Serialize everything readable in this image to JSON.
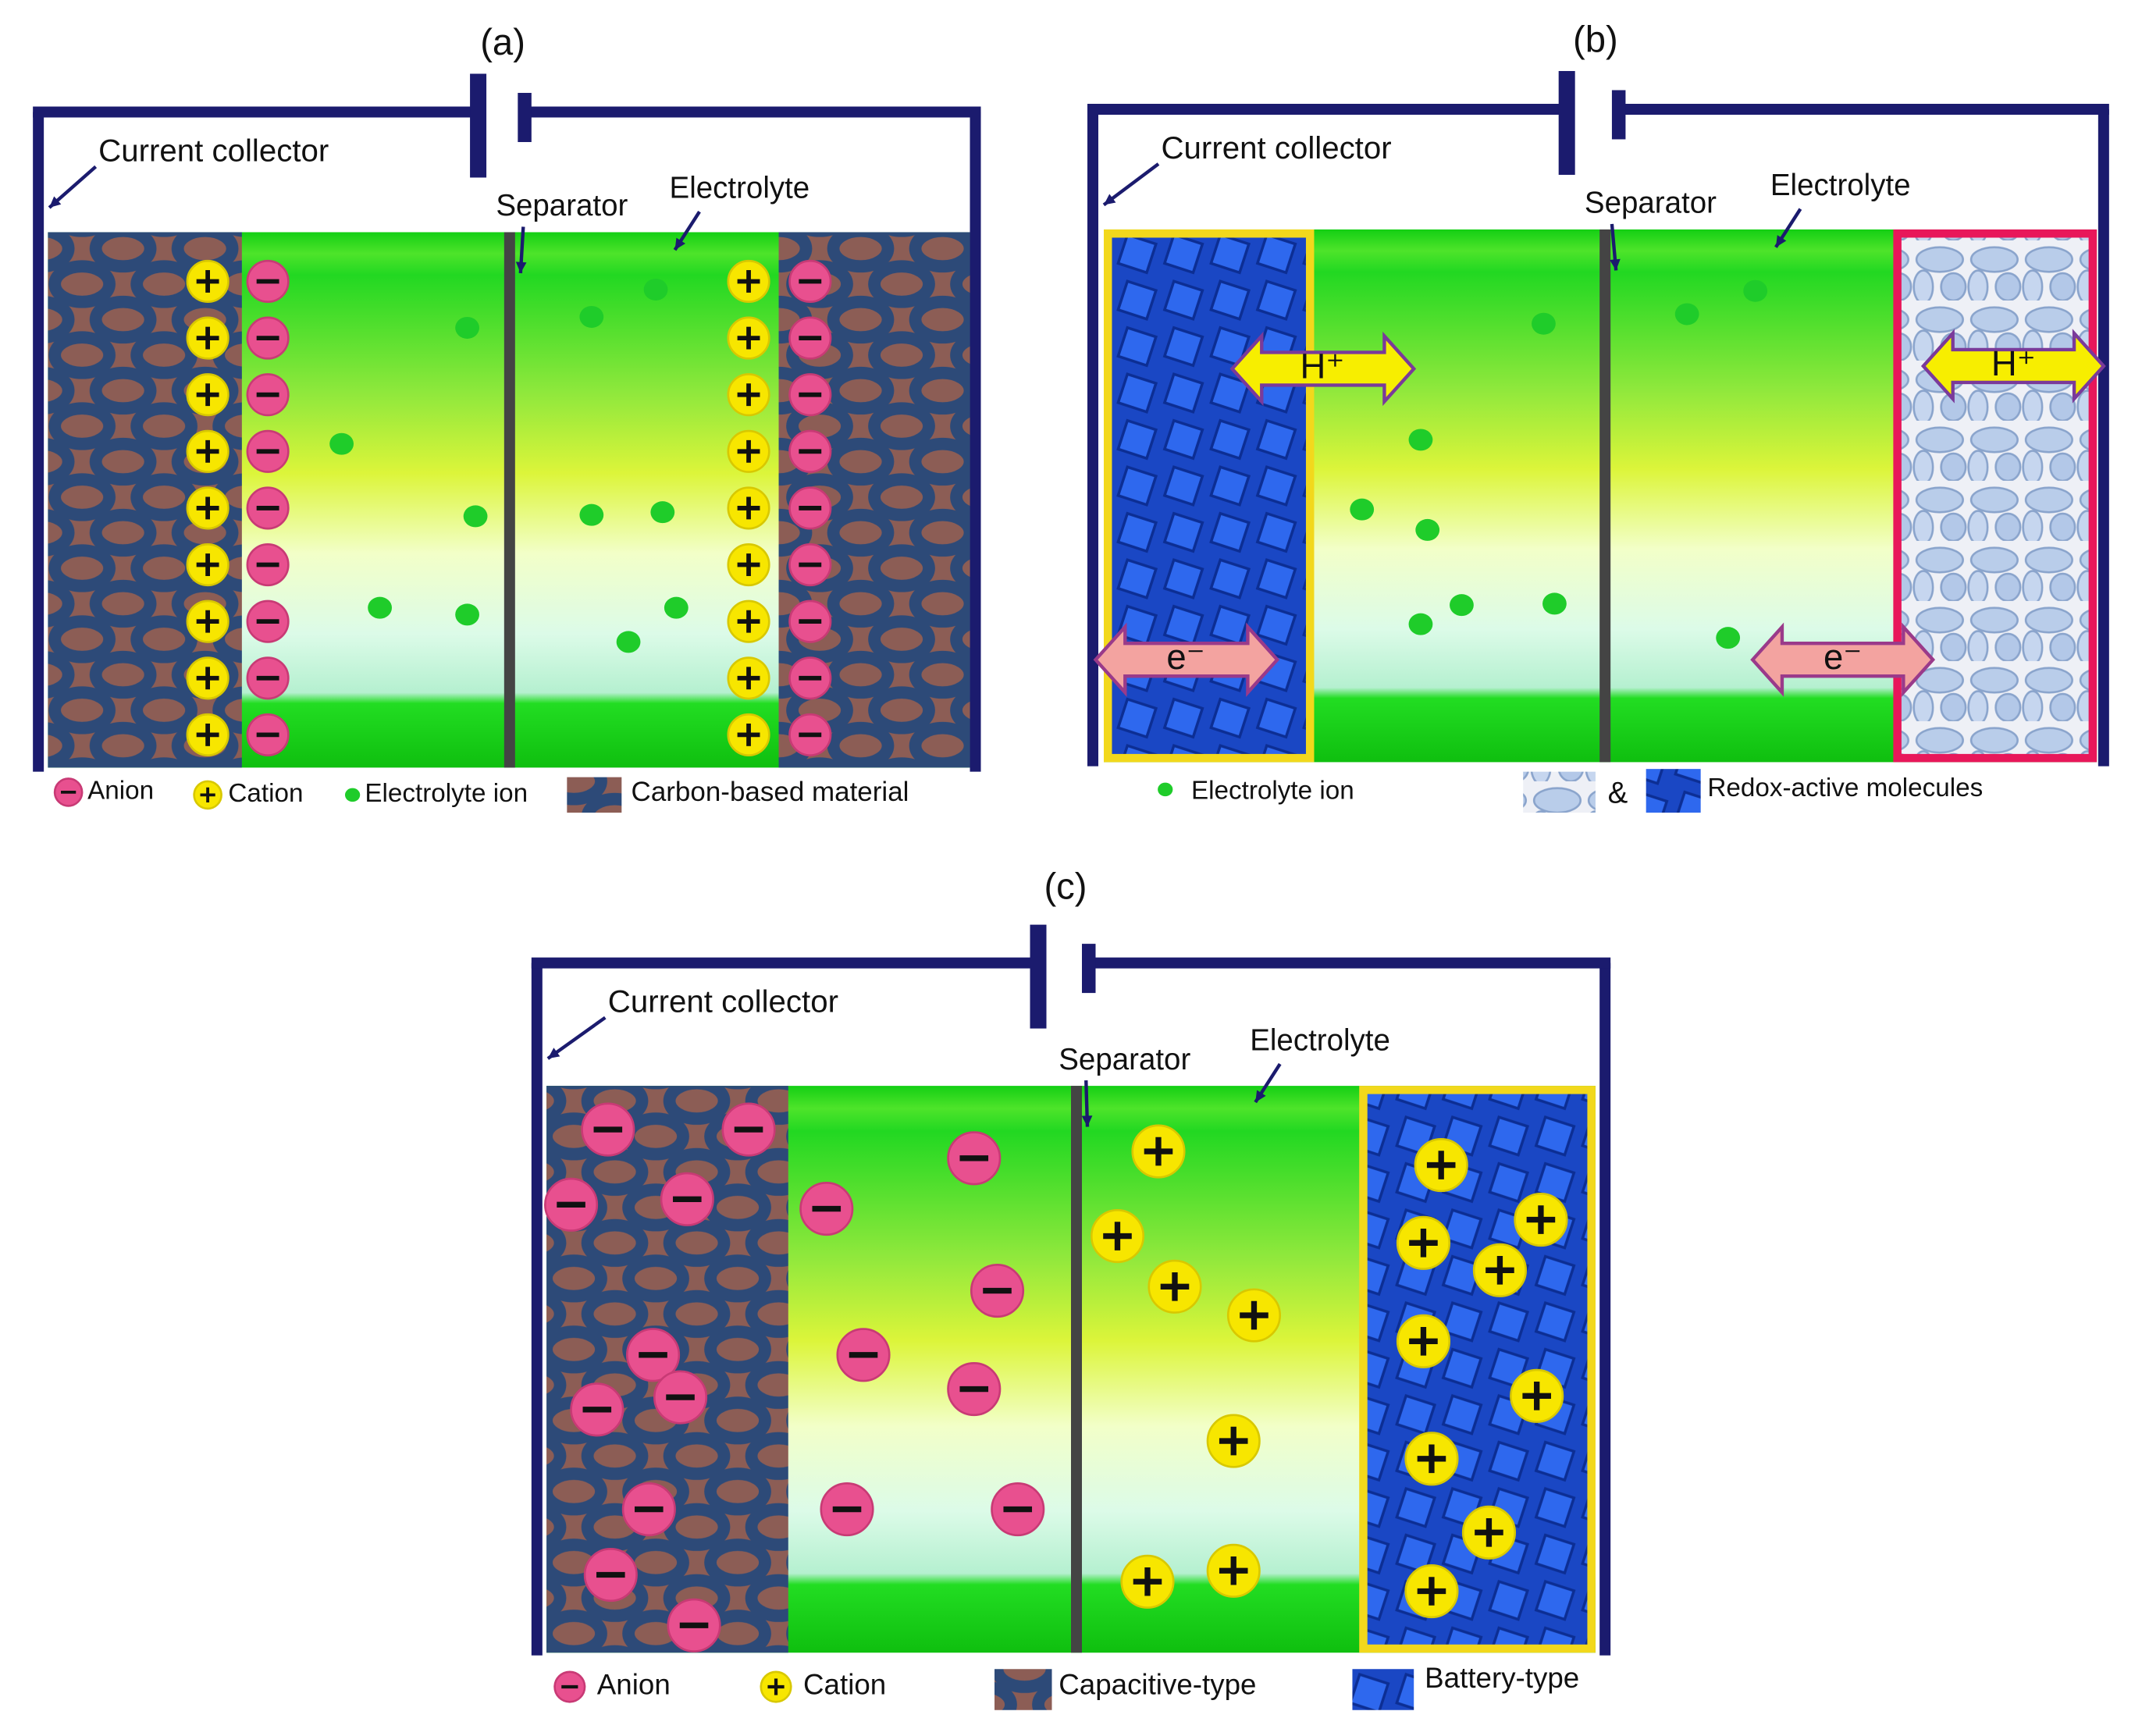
{
  "panels": [
    {
      "label": "(a)",
      "current_collector": "Current collector",
      "separator": "Separator",
      "electrolyte": "Electrolyte",
      "legend": [
        "Anion",
        "Cation",
        "Electrolyte ion",
        "Carbon-based material"
      ]
    },
    {
      "label": "(b)",
      "current_collector": "Current collector",
      "separator": "Separator",
      "electrolyte": "Electrolyte",
      "ion_labels": [
        "H⁺",
        "H⁺",
        "e⁻",
        "e⁻"
      ],
      "legend": [
        "Electrolyte ion",
        "&",
        "Redox-active molecules"
      ]
    },
    {
      "label": "(c)",
      "current_collector": "Current collector",
      "separator": "Separator",
      "electrolyte": "Electrolyte",
      "legend": [
        "Anion",
        "Cation",
        "Capacitive-type",
        "Battery-type"
      ]
    }
  ]
}
